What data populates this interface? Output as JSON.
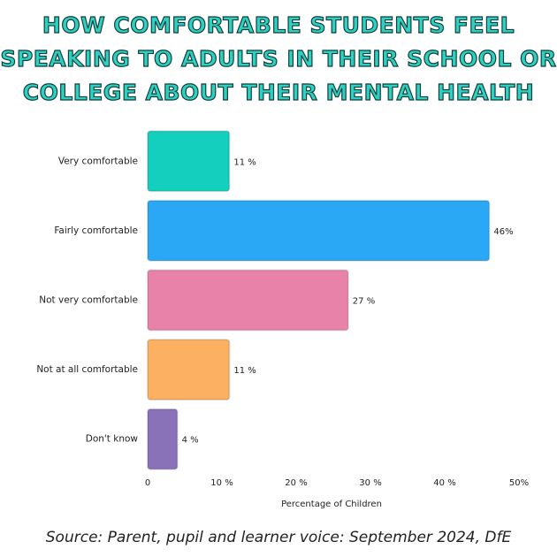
{
  "chart_data": {
    "type": "hbar",
    "title": "HOW COMFORTABLE STUDENTS FEEL SPEAKING TO ADULTS IN THEIR SCHOOL OR COLLEGE ABOUT THEIR MENTAL HEALTH",
    "categories": [
      "Very comfortable",
      "Fairly comfortable",
      "Not very comfortable",
      "Not at all comfortable",
      "Don't know"
    ],
    "values": [
      11,
      46,
      27,
      11,
      4
    ],
    "value_labels": [
      "11 %",
      "46%",
      "27 %",
      "11 %",
      "4 %"
    ],
    "colors": [
      "#14cfbe",
      "#2aa8f5",
      "#e982a8",
      "#fbb062",
      "#8a72b8"
    ],
    "xlabel": "Percentage of Children",
    "xlim": [
      0,
      50
    ],
    "xticks": [
      0,
      {
        "value": 10,
        "label": "10 %"
      },
      {
        "value": 20,
        "label": "20 %"
      },
      {
        "value": 30,
        "label": "30 %"
      },
      {
        "value": 40,
        "label": "40 %"
      },
      {
        "value": 50,
        "label": "50%"
      }
    ],
    "grid": false,
    "source": "Source: Parent, pupil and learner voice: September 2024, DfE"
  }
}
